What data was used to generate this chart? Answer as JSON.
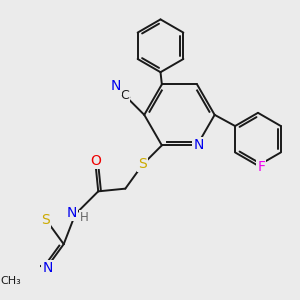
{
  "bg_color": "#ebebeb",
  "bond_color": "#1a1a1a",
  "bond_width": 1.4,
  "atom_colors": {
    "C": "#1a1a1a",
    "N": "#0000ee",
    "O": "#ee0000",
    "S": "#ccaa00",
    "F": "#ee00ee",
    "H": "#666666"
  },
  "font_size": 8.5
}
